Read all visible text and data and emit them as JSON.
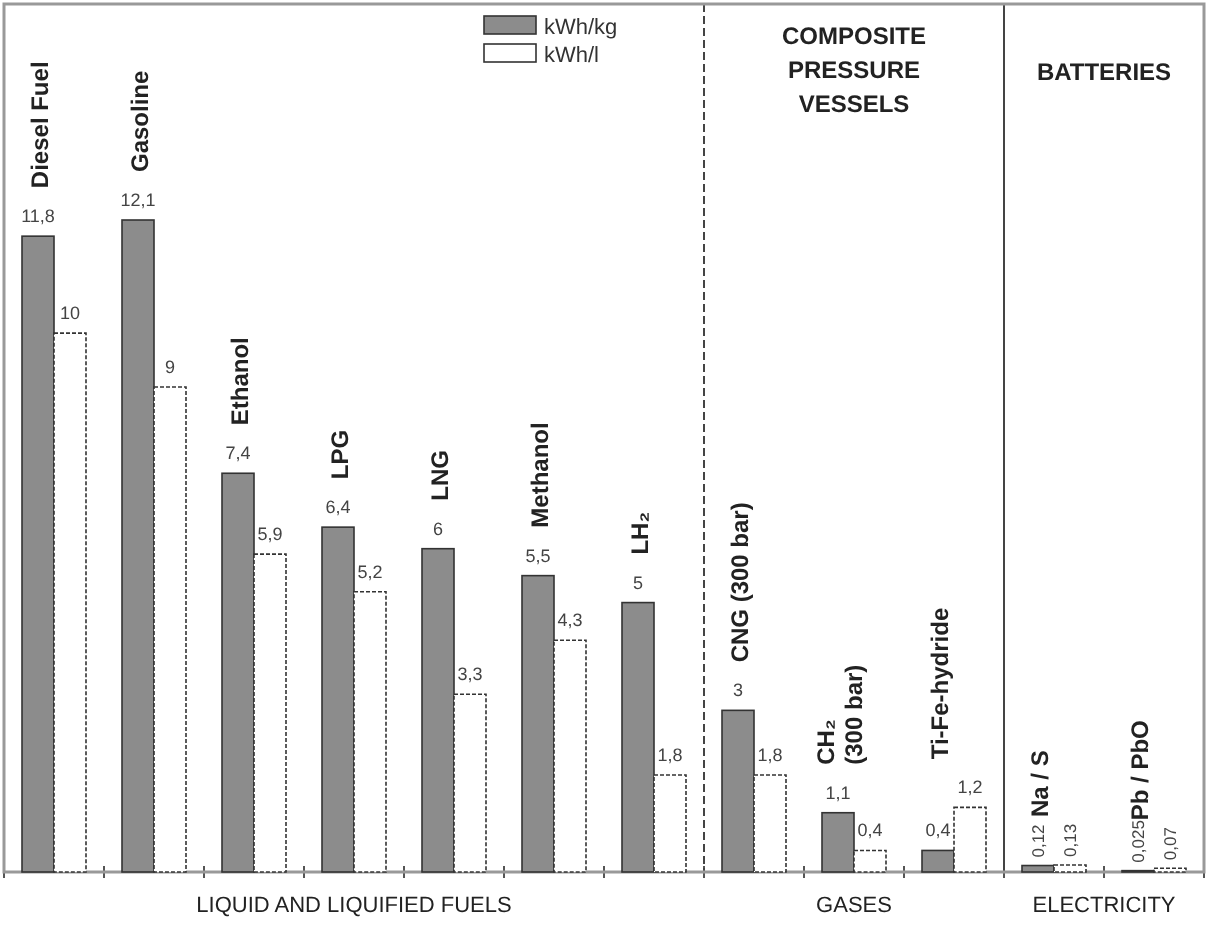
{
  "chart_data": {
    "type": "bar",
    "categories": [
      "Diesel Fuel",
      "Gasoline",
      "Ethanol",
      "LPG",
      "LNG",
      "Methanol",
      "LH₂",
      "CNG (300 bar)",
      "CH₂\n(300 bar)",
      "Ti-Fe-hydride",
      "Na / S",
      "Pb / PbO"
    ],
    "series": [
      {
        "name": "kWh/kg",
        "color": "#8c8c8c",
        "values": [
          11.8,
          12.1,
          7.4,
          6.4,
          6,
          5.5,
          5,
          3,
          1.1,
          0.4,
          0.12,
          0.025
        ],
        "value_labels": [
          "11,8",
          "12,1",
          "7,4",
          "6,4",
          "6",
          "5,5",
          "5",
          "3",
          "1,1",
          "0,4",
          "0,12",
          "0,025"
        ]
      },
      {
        "name": "kWh/l",
        "color": "#ffffff",
        "values": [
          10,
          9,
          5.9,
          5.2,
          3.3,
          4.3,
          1.8,
          1.8,
          0.4,
          1.2,
          0.13,
          0.07
        ],
        "value_labels": [
          "10",
          "9",
          "5,9",
          "5,2",
          "3,3",
          "4,3",
          "1,8",
          "1,8",
          "0,4",
          "1,2",
          "0,13",
          "0,07"
        ]
      }
    ],
    "legend": "top",
    "annotations": [
      "LIQUID AND LIQUIFIED FUELS",
      "GASES",
      "ELECTRICITY",
      "COMPOSITE PRESSURE VESSELS",
      "BATTERIES"
    ]
  }
}
